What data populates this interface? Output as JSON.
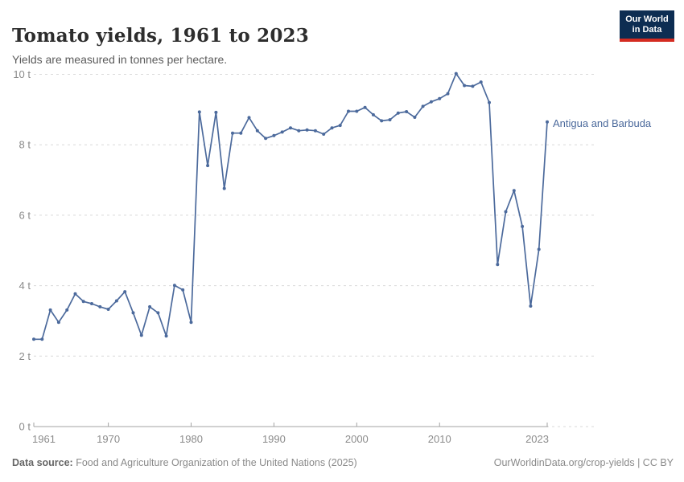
{
  "header": {
    "title": "Tomato yields, 1961 to 2023",
    "subtitle": "Yields are measured in tonnes per hectare.",
    "logo_line1": "Our World",
    "logo_line2": "in Data"
  },
  "series_label": "Antigua and Barbuda",
  "footer": {
    "source_label": "Data source:",
    "source_text": " Food and Agriculture Organization of the United Nations (2025)",
    "link": "OurWorldinData.org/crop-yields",
    "divider": " | ",
    "license": "CC BY"
  },
  "colors": {
    "line": "#4C6A9C",
    "series_label": "#4C6A9C",
    "grid": "#d9d9d9",
    "axis": "#a3a3a3",
    "tick_text": "#8b8b8b",
    "logo_bg": "#0d2d52",
    "logo_red": "#d42b21"
  },
  "chart_data": {
    "type": "line",
    "title": "Tomato yields, 1961 to 2023",
    "entity": "Antigua and Barbuda",
    "unit": "t",
    "ylabel": "tonnes per hectare",
    "ylim": [
      0,
      10
    ],
    "y_ticks": [
      0,
      2,
      4,
      6,
      8,
      10
    ],
    "y_tick_suffix": " t",
    "x_ticks": [
      1961,
      1970,
      1980,
      1990,
      2000,
      2010,
      2023
    ],
    "grid": "horizontal-dashed",
    "legend_position": "end-of-line-label",
    "x": [
      1961,
      1962,
      1963,
      1964,
      1965,
      1966,
      1967,
      1968,
      1969,
      1970,
      1971,
      1972,
      1973,
      1974,
      1975,
      1976,
      1977,
      1978,
      1979,
      1980,
      1981,
      1982,
      1983,
      1984,
      1985,
      1986,
      1987,
      1988,
      1989,
      1990,
      1991,
      1992,
      1993,
      1994,
      1995,
      1996,
      1997,
      1998,
      1999,
      2000,
      2001,
      2002,
      2003,
      2004,
      2005,
      2006,
      2007,
      2008,
      2009,
      2010,
      2011,
      2012,
      2013,
      2014,
      2015,
      2016,
      2017,
      2018,
      2019,
      2020,
      2021,
      2022,
      2023
    ],
    "values": [
      2.48,
      2.48,
      3.31,
      2.96,
      3.31,
      3.77,
      3.55,
      3.49,
      3.4,
      3.33,
      3.57,
      3.83,
      3.23,
      2.59,
      3.4,
      3.23,
      2.57,
      4.01,
      3.88,
      2.96,
      8.93,
      7.41,
      8.92,
      6.76,
      8.33,
      8.33,
      8.77,
      8.4,
      8.18,
      8.26,
      8.36,
      8.48,
      8.4,
      8.42,
      8.4,
      8.3,
      8.48,
      8.55,
      8.95,
      8.95,
      9.06,
      8.85,
      8.68,
      8.71,
      8.9,
      8.94,
      8.78,
      9.09,
      9.22,
      9.31,
      9.45,
      10.02,
      9.68,
      9.66,
      9.78,
      9.2,
      4.6,
      6.1,
      6.7,
      5.68,
      3.42,
      5.03,
      8.65
    ]
  }
}
